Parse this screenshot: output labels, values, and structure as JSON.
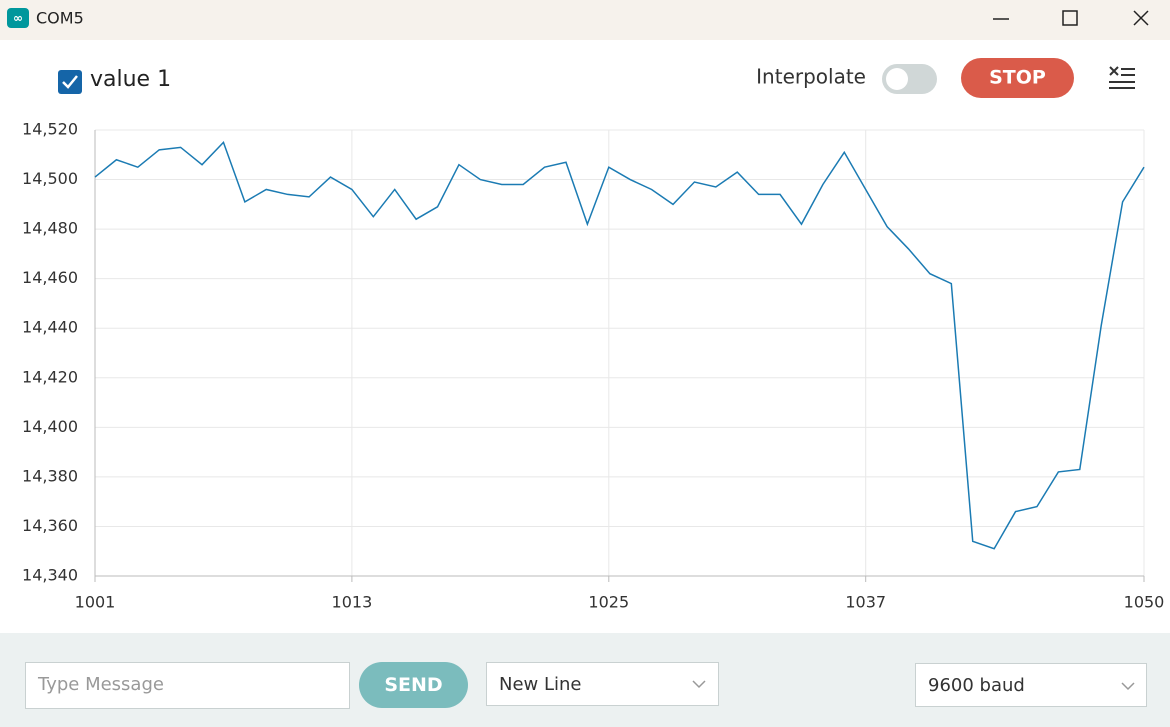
{
  "window": {
    "title": "COM5"
  },
  "toolbar": {
    "interpolate_label": "Interpolate",
    "stop_button": "STOP"
  },
  "chart_data": {
    "type": "line",
    "x": [
      1001,
      1002,
      1003,
      1004,
      1005,
      1006,
      1007,
      1008,
      1009,
      1010,
      1011,
      1012,
      1013,
      1014,
      1015,
      1016,
      1017,
      1018,
      1019,
      1020,
      1021,
      1022,
      1023,
      1024,
      1025,
      1026,
      1027,
      1028,
      1029,
      1030,
      1031,
      1032,
      1033,
      1034,
      1035,
      1036,
      1037,
      1038,
      1039,
      1040,
      1041,
      1042,
      1043,
      1044,
      1045,
      1046,
      1047,
      1048,
      1049,
      1050
    ],
    "series": [
      {
        "name": "value 1",
        "color": "#1b7bb3",
        "values": [
          14501,
          14508,
          14505,
          14512,
          14513,
          14506,
          14515,
          14491,
          14496,
          14494,
          14493,
          14501,
          14496,
          14485,
          14496,
          14484,
          14489,
          14506,
          14500,
          14498,
          14498,
          14505,
          14507,
          14482,
          14505,
          14500,
          14496,
          14490,
          14499,
          14497,
          14503,
          14494,
          14494,
          14482,
          14498,
          14511,
          14496,
          14481,
          14472,
          14462,
          14458,
          14354,
          14351,
          14366,
          14368,
          14382,
          14383,
          14441,
          14491,
          14505
        ]
      }
    ],
    "xlim": [
      1001,
      1050
    ],
    "xticks": [
      1001,
      1013,
      1025,
      1037,
      1050
    ],
    "ylim": [
      14340,
      14520
    ],
    "yticks": [
      {
        "value": 14340,
        "label": "14,340"
      },
      {
        "value": 14360,
        "label": "14,360"
      },
      {
        "value": 14380,
        "label": "14,380"
      },
      {
        "value": 14400,
        "label": "14,400"
      },
      {
        "value": 14420,
        "label": "14,420"
      },
      {
        "value": 14440,
        "label": "14,440"
      },
      {
        "value": 14460,
        "label": "14,460"
      },
      {
        "value": 14480,
        "label": "14,480"
      },
      {
        "value": 14500,
        "label": "14,500"
      },
      {
        "value": 14520,
        "label": "14,520"
      }
    ],
    "grid": true
  },
  "footer": {
    "message_placeholder": "Type Message",
    "send_button": "SEND",
    "line_ending": "New Line",
    "baud_rate": "9600 baud"
  }
}
